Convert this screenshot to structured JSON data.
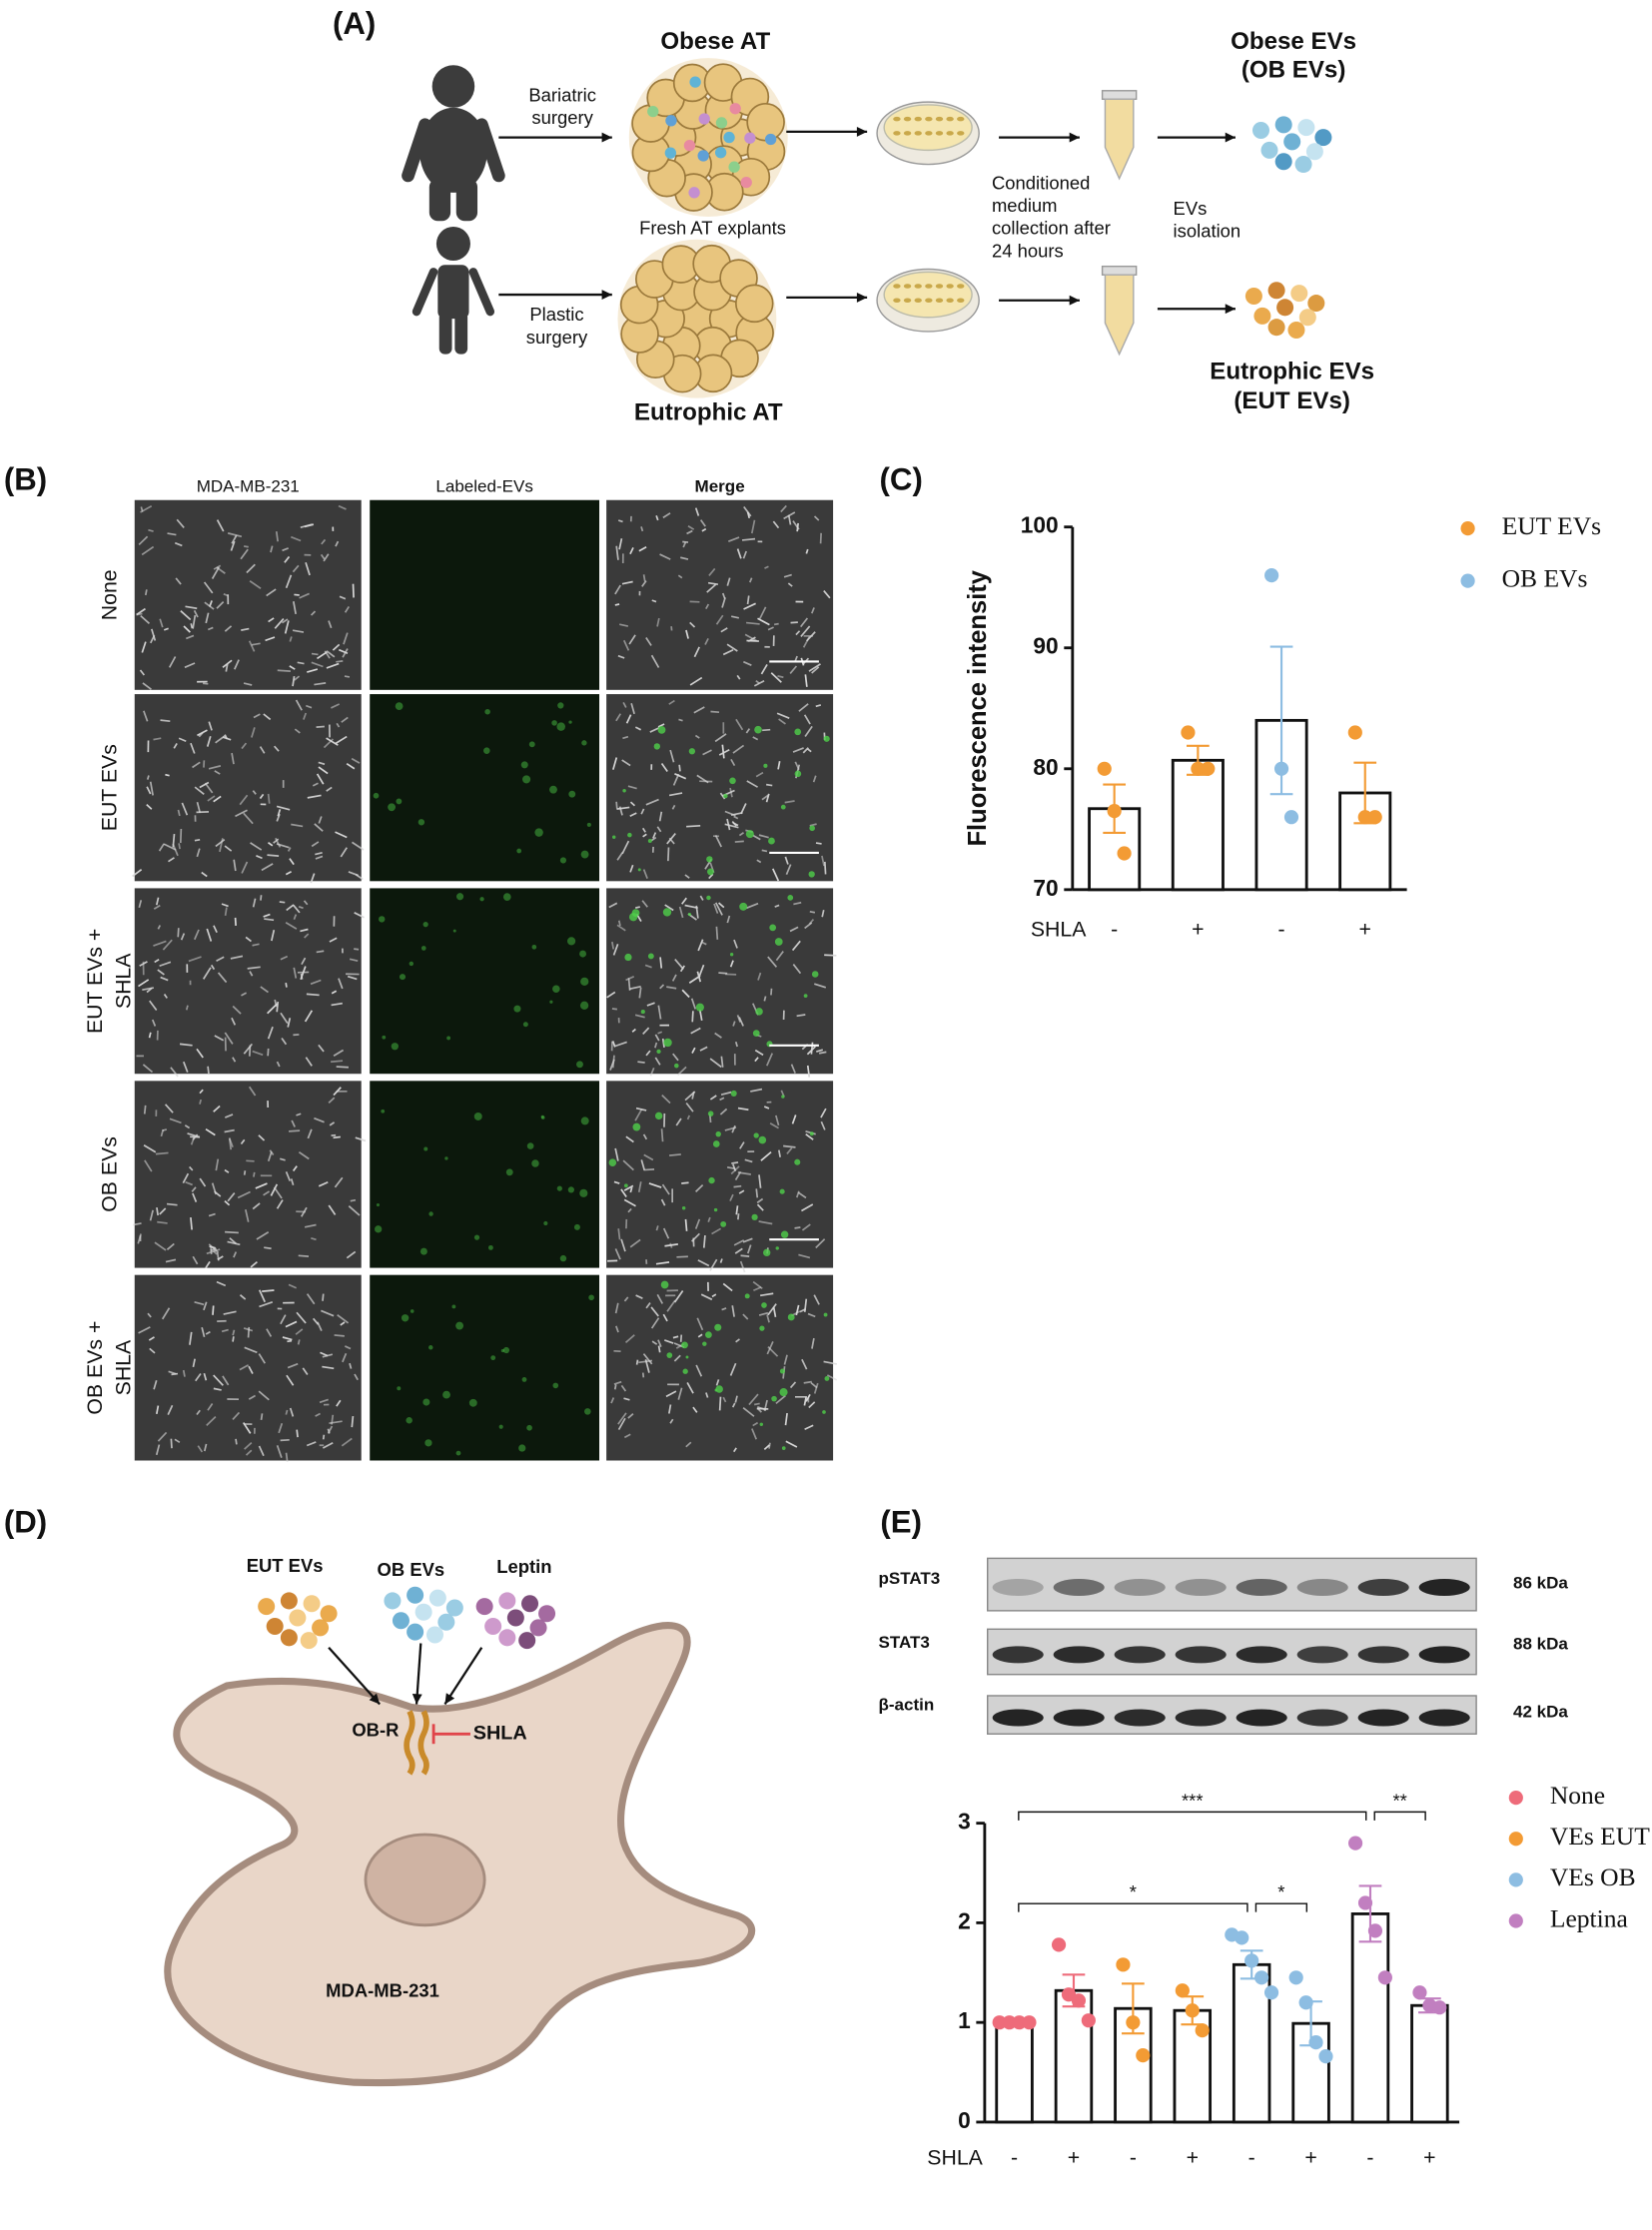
{
  "panel_labels": [
    "(A)",
    "(B)",
    "(C)",
    "(D)",
    "(E)"
  ],
  "panel_a": {
    "obese_at": "Obese AT",
    "bariatric_surgery": [
      "Bariatric",
      "surgery"
    ],
    "obese_evs": [
      "Obese EVs",
      "(OB EVs)"
    ],
    "fresh_at_explants": "Fresh AT explants",
    "conditioned_medium": [
      "Conditioned",
      "medium",
      "collection after",
      "24 hours"
    ],
    "evs_isolation": [
      "EVs",
      "isolation"
    ],
    "plastic_surgery": [
      "Plastic",
      "surgery"
    ],
    "eutrophic_at": "Eutrophic AT",
    "eutrophic_evs": [
      "Eutrophic EVs",
      "(EUT EVs)"
    ]
  },
  "panel_b": {
    "columns": [
      "MDA-MB-231",
      "Labeled-EVs",
      "Merge"
    ],
    "rows": [
      [
        "None"
      ],
      [
        "EUT  EVs"
      ],
      [
        "EUT  EVs +",
        "SHLA"
      ],
      [
        "OB EVs"
      ],
      [
        "OB EVs +",
        "SHLA"
      ]
    ]
  },
  "panel_d": {
    "eut_evs": "EUT EVs",
    "ob_evs": "OB EVs",
    "leptin": "Leptin",
    "ob_r": "OB-R",
    "shla": "SHLA",
    "cell": "MDA-MB-231"
  },
  "panel_e_blot": {
    "rows": [
      {
        "protein": "pSTAT3",
        "weight": "86 kDa"
      },
      {
        "protein": "STAT3",
        "weight": "88 kDa"
      },
      {
        "protein": "β-actin",
        "weight": "42 kDa"
      }
    ]
  },
  "chart_data": [
    {
      "type": "bar",
      "y_label": "Fluorescence intensity",
      "x_label": "SHLA",
      "categories": [
        "-",
        "+",
        "-",
        "+"
      ],
      "ylim": [
        70,
        100
      ],
      "yticks": [
        70,
        80,
        90,
        100
      ],
      "series": [
        {
          "name": "EUT EVs",
          "color": "#f39b34",
          "values": [
            76.7,
            80.7,
            null,
            78
          ],
          "errors": [
            2,
            1.2,
            null,
            2.5
          ],
          "points": [
            [
              80,
              76.5,
              73
            ],
            [
              83,
              80,
              80
            ],
            null,
            [
              83,
              76,
              76
            ]
          ]
        },
        {
          "name": "OB EVs",
          "color": "#8dbde2",
          "values": [
            null,
            null,
            84,
            null
          ],
          "errors": [
            null,
            null,
            6.1,
            null
          ],
          "points": [
            null,
            null,
            [
              96,
              80,
              76
            ],
            null
          ]
        }
      ]
    },
    {
      "type": "bar",
      "x_label": "SHLA",
      "categories": [
        "-",
        "+",
        "-",
        "+",
        "-",
        "+",
        "-",
        "+"
      ],
      "ylim": [
        0,
        3
      ],
      "yticks": [
        0,
        1,
        2,
        3
      ],
      "series": [
        {
          "name": "None",
          "color": "#ee6b7a",
          "values": [
            1,
            1.32,
            null,
            null,
            null,
            null,
            null,
            null
          ],
          "errors": [
            0,
            0.16,
            null,
            null,
            null,
            null,
            null,
            null
          ],
          "points": [
            [
              1,
              1,
              1,
              1
            ],
            [
              1.78,
              1.28,
              1.22,
              1.02
            ],
            null,
            null,
            null,
            null,
            null,
            null
          ]
        },
        {
          "name": "VEs EUT",
          "color": "#f39b34",
          "values": [
            null,
            null,
            1.14,
            1.12,
            null,
            null,
            null,
            null
          ],
          "errors": [
            null,
            null,
            0.25,
            0.14,
            null,
            null,
            null,
            null
          ],
          "points": [
            null,
            null,
            [
              1.58,
              1,
              0.67
            ],
            [
              1.32,
              1.12,
              0.92
            ],
            null,
            null,
            null,
            null
          ]
        },
        {
          "name": "VEs OB",
          "color": "#8dbde2",
          "values": [
            null,
            null,
            null,
            null,
            1.58,
            0.99,
            null,
            null
          ],
          "errors": [
            null,
            null,
            null,
            null,
            0.14,
            0.22,
            null,
            null
          ],
          "points": [
            null,
            null,
            null,
            null,
            [
              1.88,
              1.85,
              1.62,
              1.45,
              1.3
            ],
            [
              1.45,
              1.2,
              0.8,
              0.66
            ],
            null,
            null
          ]
        },
        {
          "name": "Leptina",
          "color": "#c17fc0",
          "values": [
            null,
            null,
            null,
            null,
            null,
            null,
            2.09,
            1.17
          ],
          "errors": [
            null,
            null,
            null,
            null,
            null,
            null,
            0.28,
            0.07
          ],
          "points": [
            null,
            null,
            null,
            null,
            null,
            null,
            [
              2.8,
              2.2,
              1.92,
              1.45
            ],
            [
              1.3,
              1.17,
              1.15
            ]
          ]
        }
      ],
      "significance": [
        {
          "between": [
            0,
            6
          ],
          "label": "***"
        },
        {
          "between": [
            6,
            7
          ],
          "label": "**"
        },
        {
          "between": [
            0,
            4
          ],
          "label": "*"
        },
        {
          "between": [
            4,
            5
          ],
          "label": "*"
        }
      ]
    }
  ]
}
